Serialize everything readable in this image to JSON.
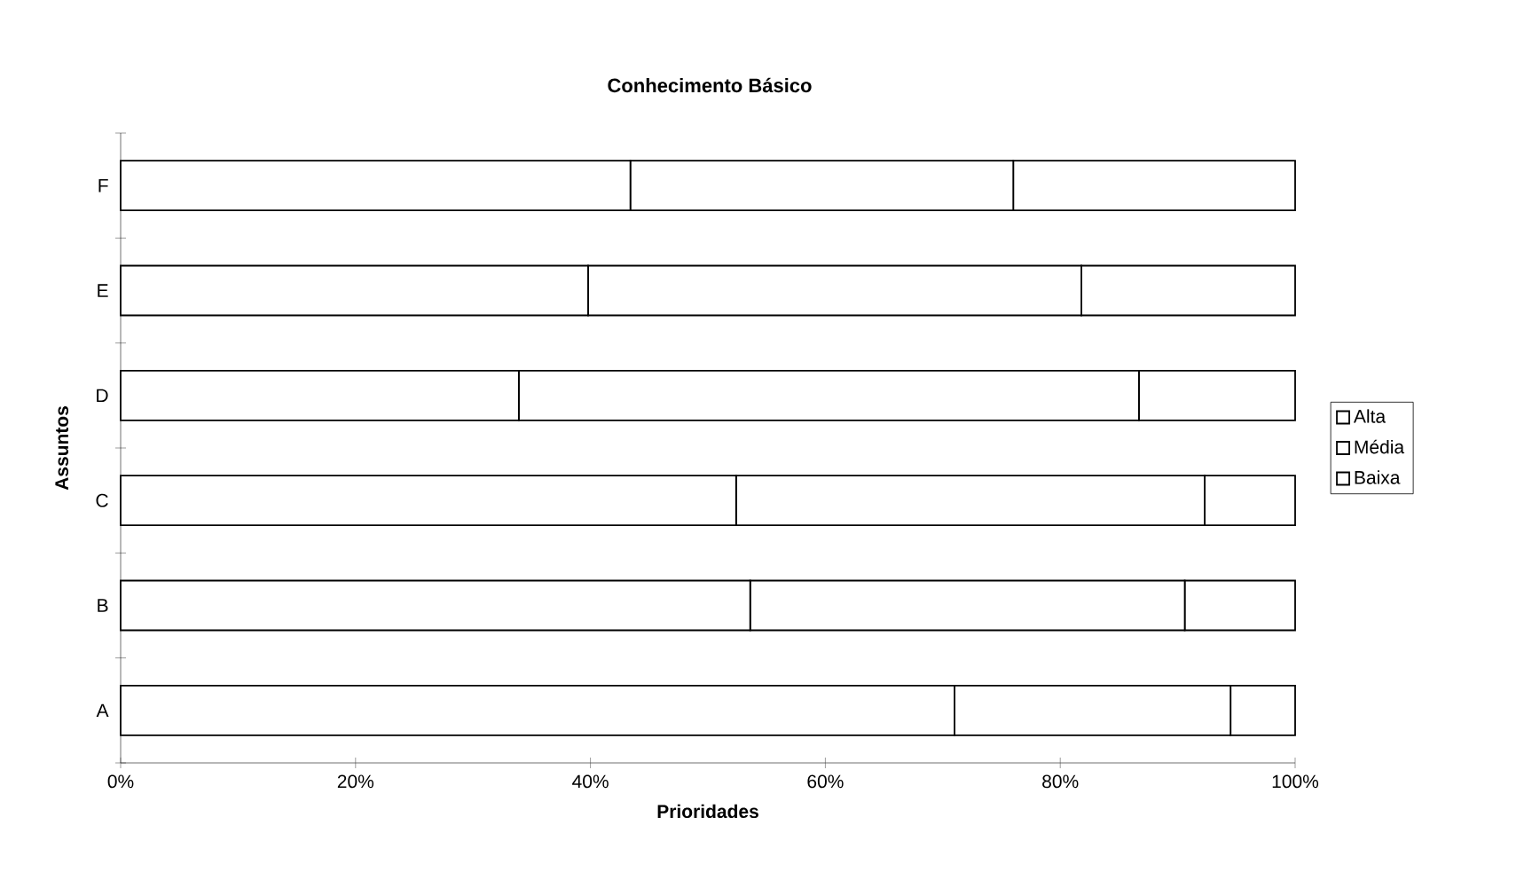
{
  "chart_data": {
    "type": "bar",
    "orientation": "horizontal",
    "stacked": true,
    "title": "Conhecimento Básico",
    "xlabel": "Prioridades",
    "ylabel": "Assuntos",
    "categories": [
      "F",
      "E",
      "D",
      "C",
      "B",
      "A"
    ],
    "series": [
      {
        "name": "Alta",
        "color": "#ffffff",
        "values": [
          43.4,
          39.8,
          33.9,
          52.4,
          53.6,
          71.0
        ]
      },
      {
        "name": "Média",
        "color": "#ffffff",
        "values": [
          32.6,
          42.0,
          52.8,
          39.9,
          37.0,
          23.5
        ]
      },
      {
        "name": "Baixa",
        "color": "#ffffff",
        "values": [
          24.0,
          18.2,
          13.3,
          7.7,
          9.4,
          5.5
        ]
      }
    ],
    "xlim": [
      0,
      100
    ],
    "xticks": [
      {
        "value": 0,
        "label": "0%"
      },
      {
        "value": 20,
        "label": "20%"
      },
      {
        "value": 40,
        "label": "40%"
      },
      {
        "value": 60,
        "label": "60%"
      },
      {
        "value": 80,
        "label": "80%"
      },
      {
        "value": 100,
        "label": "100%"
      }
    ],
    "legend": "right",
    "grid": false
  }
}
